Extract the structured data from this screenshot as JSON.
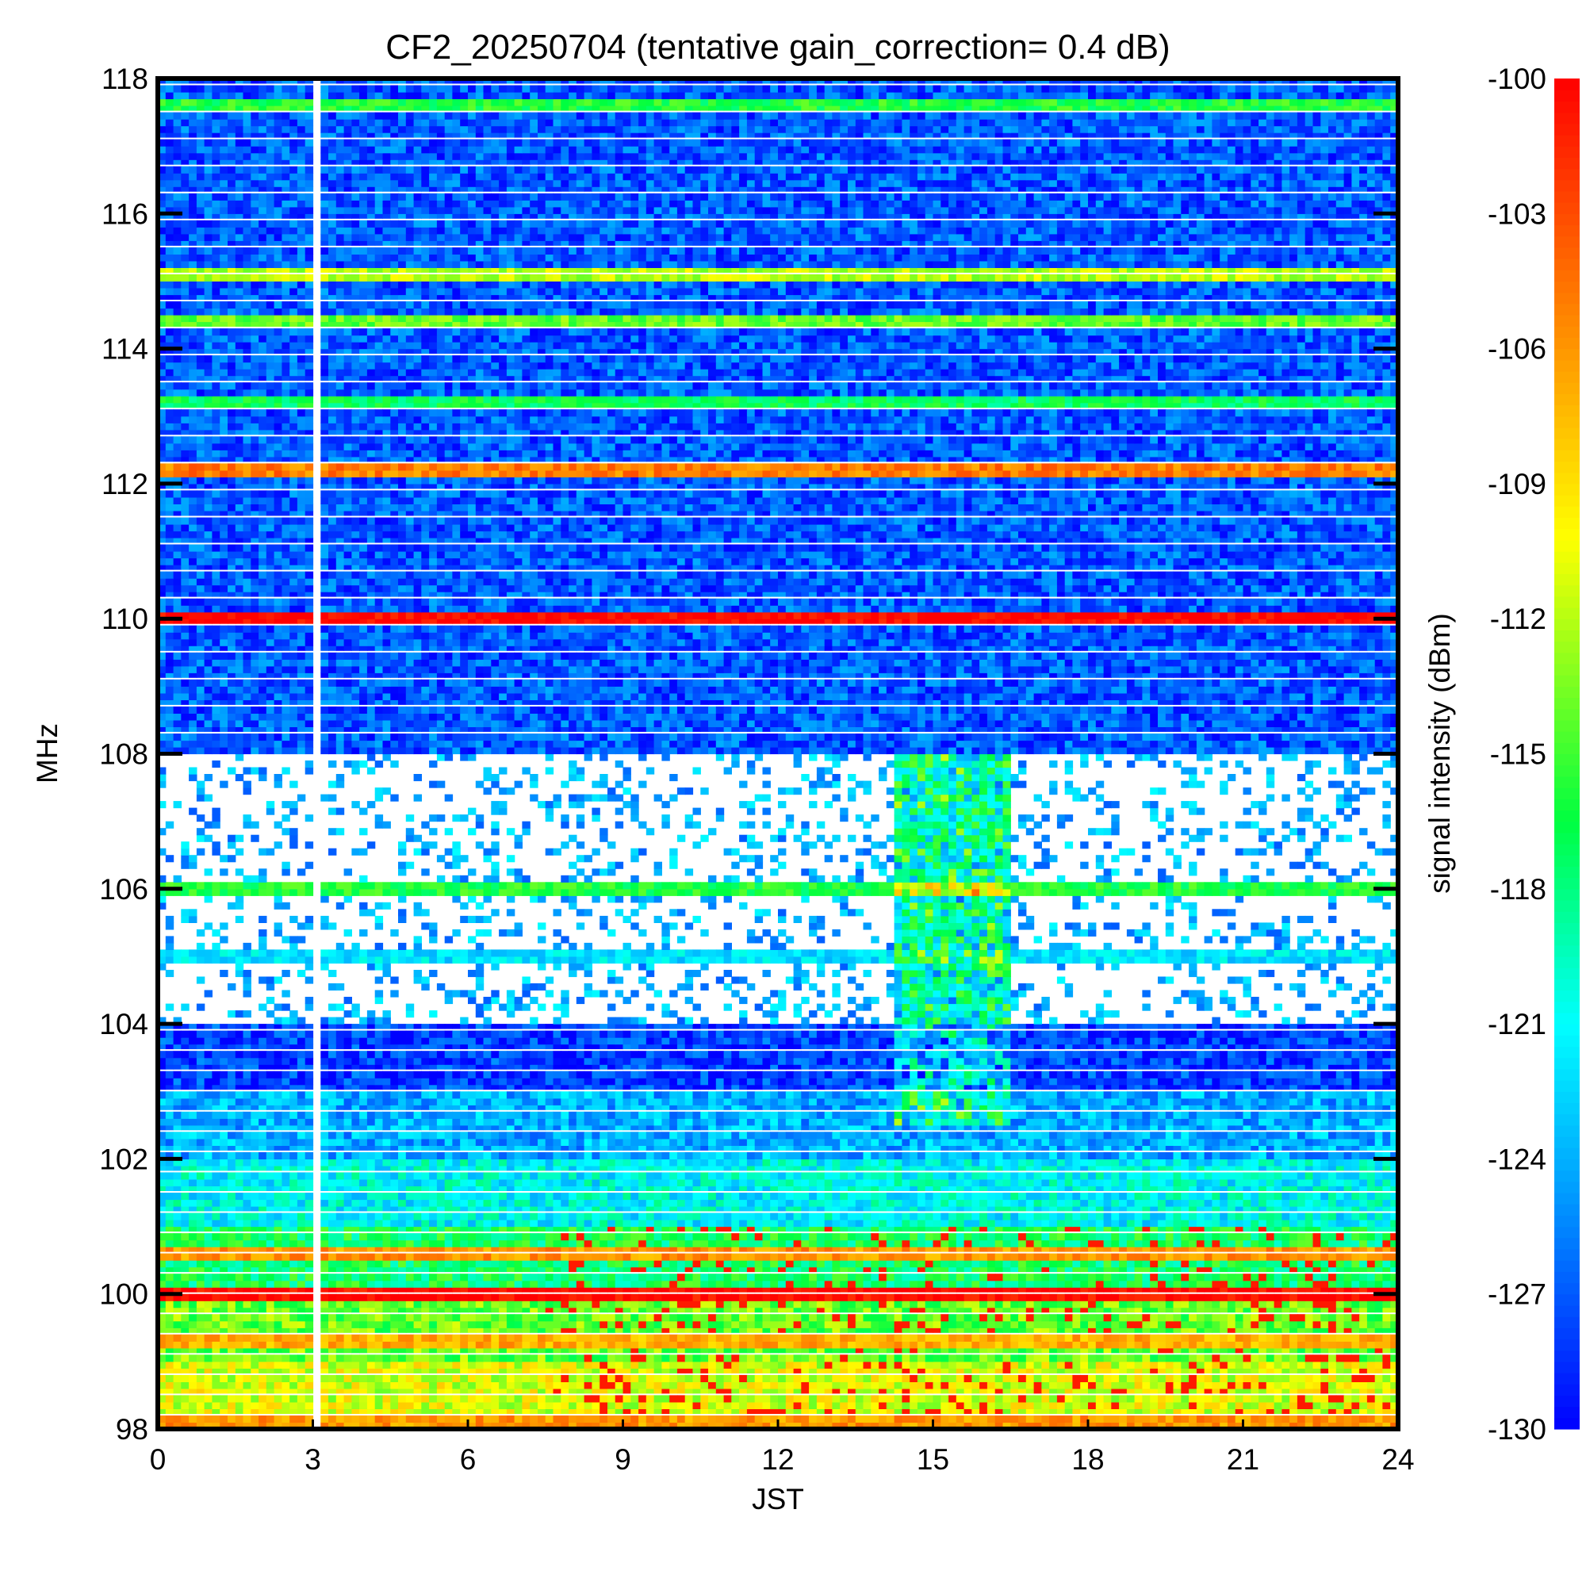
{
  "chart_data": {
    "type": "heatmap",
    "title": "CF2_20250704 (tentative gain_correction=  0.4 dB)",
    "xlabel": "JST",
    "ylabel": "MHz",
    "colorbar_label": "signal intensity (dBm)",
    "xlim": [
      0,
      24
    ],
    "ylim": [
      98,
      118
    ],
    "clim": [
      -130,
      -100
    ],
    "x_ticks": [
      "0",
      "3",
      "6",
      "9",
      "12",
      "15",
      "18",
      "21",
      "24"
    ],
    "y_ticks": [
      "98",
      "100",
      "102",
      "104",
      "106",
      "108",
      "110",
      "112",
      "114",
      "116",
      "118"
    ],
    "colorbar_ticks": [
      "-100",
      "-103",
      "-106",
      "-109",
      "-112",
      "-115",
      "-118",
      "-121",
      "-124",
      "-127",
      "-130"
    ],
    "colormap": [
      "#0000ff",
      "#00a0ff",
      "#00ffff",
      "#00ff40",
      "#ffff00",
      "#ff8000",
      "#ff0000"
    ],
    "missing_time_range_hours": [
      3.0,
      3.15
    ],
    "background_level_by_freq_mhz": [
      {
        "from": 98,
        "to": 99,
        "dbm": -111
      },
      {
        "from": 99,
        "to": 100,
        "dbm": -114
      },
      {
        "from": 100,
        "to": 101,
        "dbm": -117
      },
      {
        "from": 101,
        "to": 102,
        "dbm": -121
      },
      {
        "from": 102,
        "to": 103,
        "dbm": -124
      },
      {
        "from": 103,
        "to": 104,
        "dbm": -128
      },
      {
        "from": 104,
        "to": 108,
        "dbm": null
      },
      {
        "from": 108,
        "to": 118,
        "dbm": -127
      }
    ],
    "strong_bands": [
      {
        "freq_mhz": 100.0,
        "dbm": -100
      },
      {
        "freq_mhz": 110.0,
        "dbm": -100
      },
      {
        "freq_mhz": 112.2,
        "dbm": -105
      },
      {
        "freq_mhz": 117.6,
        "dbm": -116
      },
      {
        "freq_mhz": 115.1,
        "dbm": -112
      },
      {
        "freq_mhz": 114.4,
        "dbm": -114
      },
      {
        "freq_mhz": 113.2,
        "dbm": -117
      },
      {
        "freq_mhz": 105.0,
        "dbm": -122
      },
      {
        "freq_mhz": 106.0,
        "dbm": -116
      },
      {
        "freq_mhz": 98.1,
        "dbm": -106
      },
      {
        "freq_mhz": 99.3,
        "dbm": -107
      },
      {
        "freq_mhz": 100.6,
        "dbm": -106
      }
    ],
    "enhanced_interval": {
      "from_hour": 14.3,
      "to_hour": 16.5,
      "freq_from": 102.5,
      "freq_to": 108,
      "dbm_boost": 10
    }
  }
}
